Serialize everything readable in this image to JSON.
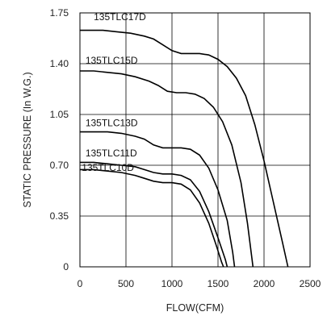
{
  "chart_data": {
    "type": "line",
    "xlabel": "FLOW(CFM)",
    "ylabel": "STATIC PRESSURE (In W.G.)",
    "xlim": [
      0,
      2500
    ],
    "ylim": [
      0,
      1.75
    ],
    "x_ticks": [
      0,
      500,
      1000,
      1500,
      2000,
      2500
    ],
    "y_ticks": [
      0,
      0.35,
      0.7,
      1.05,
      1.4,
      1.75
    ],
    "x_tick_labels": [
      "0",
      "500",
      "1000",
      "1500",
      "2000",
      "2500"
    ],
    "y_tick_labels": [
      "0",
      "0.35",
      "0.70",
      "1.05",
      "1.40",
      "1.75"
    ],
    "grid": true,
    "series": [
      {
        "name": "135TLC17D",
        "label_at": [
          150,
          1.7
        ],
        "points": [
          [
            0,
            1.63
          ],
          [
            100,
            1.63
          ],
          [
            250,
            1.63
          ],
          [
            400,
            1.62
          ],
          [
            550,
            1.61
          ],
          [
            700,
            1.59
          ],
          [
            800,
            1.57
          ],
          [
            900,
            1.53
          ],
          [
            1000,
            1.49
          ],
          [
            1100,
            1.47
          ],
          [
            1200,
            1.47
          ],
          [
            1300,
            1.47
          ],
          [
            1400,
            1.46
          ],
          [
            1500,
            1.43
          ],
          [
            1600,
            1.38
          ],
          [
            1700,
            1.3
          ],
          [
            1800,
            1.18
          ],
          [
            1900,
            0.98
          ],
          [
            2000,
            0.73
          ],
          [
            2100,
            0.45
          ],
          [
            2200,
            0.17
          ],
          [
            2260,
            0
          ]
        ]
      },
      {
        "name": "135TLC15D",
        "label_at": [
          60,
          1.4
        ],
        "points": [
          [
            0,
            1.35
          ],
          [
            150,
            1.35
          ],
          [
            300,
            1.34
          ],
          [
            450,
            1.33
          ],
          [
            600,
            1.31
          ],
          [
            750,
            1.28
          ],
          [
            850,
            1.25
          ],
          [
            950,
            1.21
          ],
          [
            1050,
            1.2
          ],
          [
            1150,
            1.2
          ],
          [
            1250,
            1.19
          ],
          [
            1350,
            1.16
          ],
          [
            1450,
            1.1
          ],
          [
            1550,
            1.0
          ],
          [
            1650,
            0.84
          ],
          [
            1750,
            0.58
          ],
          [
            1820,
            0.3
          ],
          [
            1870,
            0.05
          ],
          [
            1880,
            0
          ]
        ]
      },
      {
        "name": "135TLC13D",
        "label_at": [
          60,
          0.97
        ],
        "points": [
          [
            0,
            0.93
          ],
          [
            150,
            0.93
          ],
          [
            300,
            0.93
          ],
          [
            450,
            0.92
          ],
          [
            600,
            0.9
          ],
          [
            700,
            0.88
          ],
          [
            800,
            0.84
          ],
          [
            900,
            0.82
          ],
          [
            1000,
            0.82
          ],
          [
            1100,
            0.82
          ],
          [
            1200,
            0.81
          ],
          [
            1300,
            0.77
          ],
          [
            1400,
            0.68
          ],
          [
            1500,
            0.53
          ],
          [
            1600,
            0.32
          ],
          [
            1660,
            0.1
          ],
          [
            1680,
            0
          ]
        ]
      },
      {
        "name": "135TLC11D",
        "label_at": [
          60,
          0.76
        ],
        "points": [
          [
            0,
            0.72
          ],
          [
            150,
            0.72
          ],
          [
            300,
            0.71
          ],
          [
            450,
            0.7
          ],
          [
            600,
            0.69
          ],
          [
            700,
            0.67
          ],
          [
            800,
            0.65
          ],
          [
            900,
            0.64
          ],
          [
            1000,
            0.64
          ],
          [
            1100,
            0.63
          ],
          [
            1200,
            0.6
          ],
          [
            1300,
            0.52
          ],
          [
            1400,
            0.38
          ],
          [
            1500,
            0.2
          ],
          [
            1580,
            0.05
          ],
          [
            1600,
            0
          ]
        ]
      },
      {
        "name": "135TLC10D",
        "label_at": [
          20,
          0.66
        ],
        "points": [
          [
            0,
            0.67
          ],
          [
            150,
            0.67
          ],
          [
            300,
            0.66
          ],
          [
            450,
            0.65
          ],
          [
            600,
            0.63
          ],
          [
            700,
            0.61
          ],
          [
            800,
            0.59
          ],
          [
            900,
            0.58
          ],
          [
            1000,
            0.58
          ],
          [
            1100,
            0.57
          ],
          [
            1200,
            0.53
          ],
          [
            1300,
            0.44
          ],
          [
            1400,
            0.3
          ],
          [
            1480,
            0.15
          ],
          [
            1540,
            0.03
          ],
          [
            1560,
            0
          ]
        ]
      }
    ]
  }
}
